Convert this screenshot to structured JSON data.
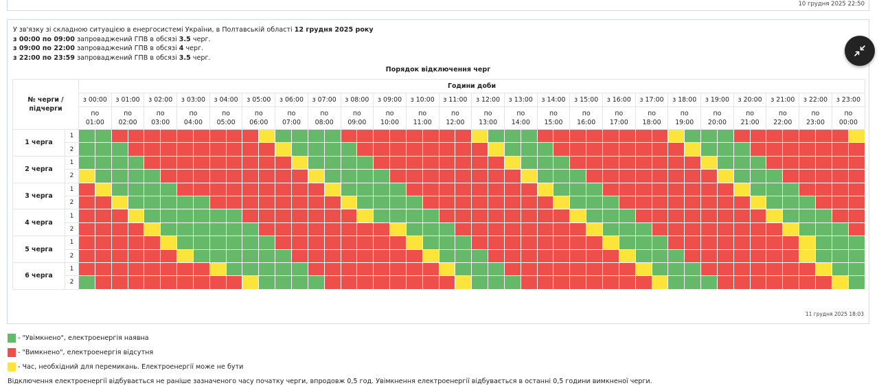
{
  "top_card": {
    "timestamp": "10 грудня 2025 22:50"
  },
  "notice": {
    "intro": "У зв'язку зі складною ситуацією в енергосистемі України, в Полтавській області",
    "date": "12 грудня 2025 року",
    "periods": [
      {
        "range": "з 00:00 по 09:00",
        "text": "запроваджений ГПВ в обсязі",
        "amount": "3.5",
        "unit": "черг."
      },
      {
        "range": "з 09:00 по 22:00",
        "text": "запроваджений ГПВ в обсязі",
        "amount": "4",
        "unit": "черг."
      },
      {
        "range": "з 22:00 по 23:59",
        "text": "запроваджений ГПВ в обсязі",
        "amount": "3.5",
        "unit": "черг."
      }
    ]
  },
  "collapse_icon": "collapse-arrows-icon",
  "table": {
    "title": "Порядок відключення черг",
    "corner_label": "№ черги / підчерги",
    "hours_header": "Години доби",
    "to_prefix": "по",
    "hours": [
      {
        "from": "з 00:00",
        "to": "01:00"
      },
      {
        "from": "з 01:00",
        "to": "02:00"
      },
      {
        "from": "з 02:00",
        "to": "03:00"
      },
      {
        "from": "з 03:00",
        "to": "04:00"
      },
      {
        "from": "з 04:00",
        "to": "05:00"
      },
      {
        "from": "з 05:00",
        "to": "06:00"
      },
      {
        "from": "з 06:00",
        "to": "07:00"
      },
      {
        "from": "з 07:00",
        "to": "08:00"
      },
      {
        "from": "з 08:00",
        "to": "09:00"
      },
      {
        "from": "з 09:00",
        "to": "10:00"
      },
      {
        "from": "з 10:00",
        "to": "11:00"
      },
      {
        "from": "з 11:00",
        "to": "12:00"
      },
      {
        "from": "з 12:00",
        "to": "13:00"
      },
      {
        "from": "з 13:00",
        "to": "14:00"
      },
      {
        "from": "з 14:00",
        "to": "15:00"
      },
      {
        "from": "з 15:00",
        "to": "16:00"
      },
      {
        "from": "з 16:00",
        "to": "17:00"
      },
      {
        "from": "з 17:00",
        "to": "18:00"
      },
      {
        "from": "з 18:00",
        "to": "19:00"
      },
      {
        "from": "з 19:00",
        "to": "20:00"
      },
      {
        "from": "з 20:00",
        "to": "21:00"
      },
      {
        "from": "з 21:00",
        "to": "22:00"
      },
      {
        "from": "з 22:00",
        "to": "23:00"
      },
      {
        "from": "з 23:00",
        "to": "00:00"
      }
    ],
    "status_legend_codes": {
      "G": "on",
      "R": "off",
      "Y": "switching"
    },
    "queues": [
      {
        "label": "1 черга",
        "subs": [
          {
            "label": "1",
            "cells": "GGRRRRRRRRRYGGGGRRRRRRRRYGGGRRRRRRRRYGGGRRRRRRRY"
          },
          {
            "label": "2",
            "cells": "GGGRRRRRRRRRYGGGGRRRRRRRRYGGGRRRRRRRRYGGGRRRRRRR"
          }
        ]
      },
      {
        "label": "2 черга",
        "subs": [
          {
            "label": "1",
            "cells": "GGGGRRRRRRRRRYGGGGRRRRRRRRYGGGRRRRRRRRYGGGRRRRRR"
          },
          {
            "label": "2",
            "cells": "YGGGGRRRRRRRRRYGGGGRRRRRRRRYGGGRRRRRRRRYGGGRRRRR"
          }
        ]
      },
      {
        "label": "3 черга",
        "subs": [
          {
            "label": "1",
            "cells": "RYGGGGRRRRRRRRRYGGGGRRRRRRRRYGGGRRRRRRRRYGGGRRRR"
          },
          {
            "label": "2",
            "cells": "RRYGGGGGRRRRRRRRYGGGGRRRRRRRRYGGGRRRRRRRRYGGGRRR"
          }
        ]
      },
      {
        "label": "4 черга",
        "subs": [
          {
            "label": "1",
            "cells": "RRRYGGGGGGRRRRRRRYGGGGRRRRRRRRYGGGRRRRRRRRYGGGRR"
          },
          {
            "label": "2",
            "cells": "RRRRYGGGGGGRRRRRRRRYGGGRRRRRRRRYGGGRRRRRRRRYGGGR"
          }
        ]
      },
      {
        "label": "5 черга",
        "subs": [
          {
            "label": "1",
            "cells": "RRRRRYGGGGGGRRRRRRRRYGGGRRRRRRRRYGGGRRRRRRRRYGGG"
          },
          {
            "label": "2",
            "cells": "RRRRRRYGGGGGGRRRRRRRRYGGGRRRRRRRRYGGGRRRRRRRYGGG"
          }
        ]
      },
      {
        "label": "6 черга",
        "subs": [
          {
            "label": "1",
            "cells": "RRRRRRRRYGGGGGRRRRRRRRYGGGRRRRRRRRYGGGRRRRRRRYGG"
          },
          {
            "label": "2",
            "cells": "GRRRRRRRRRYGGGGRRRRRRRRYGGGRRRRRRRRYGGGRRRRRRRYG"
          }
        ]
      }
    ],
    "timestamp": "11 грудня 2025 18:03"
  },
  "legend": [
    {
      "color": "#66b968",
      "text": "- \"Увімкнено\", електроенергія наявна"
    },
    {
      "color": "#ee4f4b",
      "text": "- \"Вимкнено\", електроенергія відсутня"
    },
    {
      "color": "#fce43b",
      "text": "- Час, необхідний для перемикань. Електроенергії може не бути"
    }
  ],
  "footnote": "Відключення електроенергії відбувається не раніше зазначеного часу початку черги, впродовж 0,5 год. Увімкнення електроенергії відбувається в останні 0,5 години вимкненої черги."
}
